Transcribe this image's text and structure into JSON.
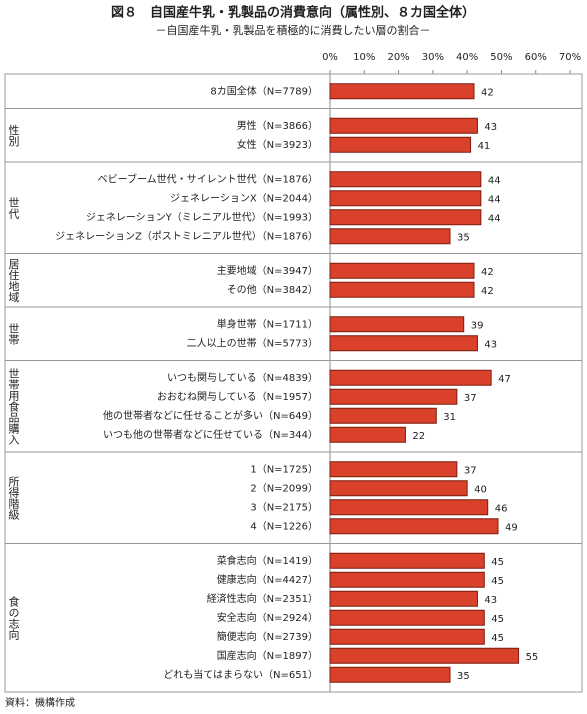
{
  "chart_data": {
    "type": "bar",
    "title": "図８　自国産牛乳・乳製品の消費意向（属性別、８カ国全体）",
    "subtitle": "－自国産牛乳・乳製品を積極的に消費したい層の割合－",
    "source": "資料：機構作成",
    "color": "#d9412b",
    "xlim": [
      0,
      70
    ],
    "xticks": [
      {
        "value": 0,
        "label": "0%"
      },
      {
        "value": 10,
        "label": "10%"
      },
      {
        "value": 20,
        "label": "20%"
      },
      {
        "value": 30,
        "label": "30%"
      },
      {
        "value": 40,
        "label": "40%"
      },
      {
        "value": 50,
        "label": "50%"
      },
      {
        "value": 60,
        "label": "60%"
      },
      {
        "value": 70,
        "label": "70%"
      }
    ],
    "groups": [
      {
        "categories": [
          "8カ国全体（N=7789）"
        ],
        "values": [
          42
        ]
      },
      {
        "name": "性別",
        "categories": [
          "男性（N=3866）",
          "女性（N=3923）"
        ],
        "values": [
          43,
          41
        ]
      },
      {
        "name": "世代",
        "categories": [
          "ベビーブーム世代・サイレント世代（N=1876）",
          "ジェネレーションX（N=2044）",
          "ジェネレーションY（ミレニアル世代）（N=1993）",
          "ジェネレーションZ（ポストミレニアル世代）（N=1876）"
        ],
        "values": [
          44,
          44,
          44,
          35
        ]
      },
      {
        "name": "居住地域",
        "categories": [
          "主要地域（N=3947）",
          "その他（N=3842）"
        ],
        "values": [
          42,
          42
        ]
      },
      {
        "name": "世帯",
        "categories": [
          "単身世帯（N=1711）",
          "二人以上の世帯（N=5773）"
        ],
        "values": [
          39,
          43
        ]
      },
      {
        "name": "世帯用食品購入",
        "categories": [
          "いつも関与している（N=4839）",
          "おおむね関与している（N=1957）",
          "他の世帯者などに任せることが多い（N=649）",
          "いつも他の世帯者などに任せている（N=344）"
        ],
        "values": [
          47,
          37,
          31,
          22
        ]
      },
      {
        "name": "所得階級",
        "categories": [
          "1（N=1725）",
          "2（N=2099）",
          "3（N=2175）",
          "4（N=1226）"
        ],
        "values": [
          37,
          40,
          46,
          49
        ]
      },
      {
        "name": "食の志向",
        "categories": [
          "菜食志向（N=1419）",
          "健康志向（N=4427）",
          "経済性志向（N=2351）",
          "安全志向（N=2924）",
          "簡便志向（N=2739）",
          "国産志向（N=1897）",
          "どれも当てはまらない（N=651）"
        ],
        "values": [
          45,
          45,
          43,
          45,
          45,
          55,
          35
        ]
      }
    ]
  }
}
